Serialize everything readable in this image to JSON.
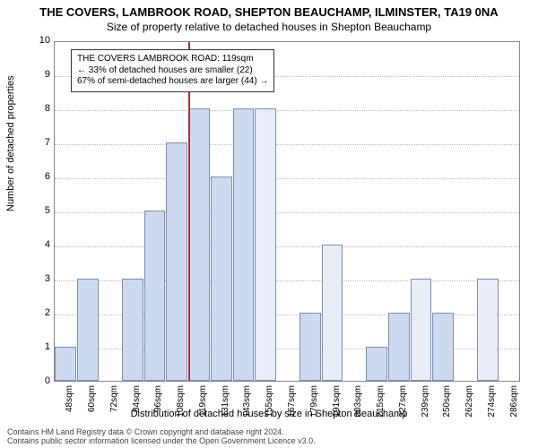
{
  "title": "THE COVERS, LAMBROOK ROAD, SHEPTON BEAUCHAMP, ILMINSTER, TA19 0NA",
  "subtitle": "Size of property relative to detached houses in Shepton Beauchamp",
  "ylabel": "Number of detached properties",
  "xlabel": "Distribution of detached houses by size in Shepton Beauchamp",
  "footer_line1": "Contains HM Land Registry data © Crown copyright and database right 2024.",
  "footer_line2": "Contains public sector information licensed under the Open Government Licence v3.0.",
  "chart": {
    "type": "histogram",
    "ylim": [
      0,
      10
    ],
    "ytick_step": 1,
    "background_color": "#ffffff",
    "grid_color": "#bbbbbb",
    "bar_fill": "#cdd9ef",
    "bar_fill_alt": "#e8edf8",
    "bar_border": "#7a8fb8",
    "marker_color": "#b03030",
    "marker_value": 119,
    "categories": [
      "48sqm",
      "60sqm",
      "72sqm",
      "84sqm",
      "96sqm",
      "108sqm",
      "119sqm",
      "131sqm",
      "143sqm",
      "155sqm",
      "167sqm",
      "179sqm",
      "191sqm",
      "203sqm",
      "215sqm",
      "227sqm",
      "239sqm",
      "250sqm",
      "262sqm",
      "274sqm",
      "286sqm"
    ],
    "values": [
      1,
      3,
      0,
      3,
      5,
      7,
      8,
      6,
      8,
      8,
      0,
      2,
      4,
      0,
      1,
      2,
      3,
      2,
      0,
      3,
      0
    ],
    "alt_shade": [
      0,
      0,
      0,
      0,
      0,
      0,
      0,
      0,
      0,
      1,
      0,
      0,
      1,
      0,
      0,
      0,
      1,
      0,
      0,
      1,
      0
    ],
    "annot": {
      "line1": "THE COVERS LAMBROOK ROAD: 119sqm",
      "line2": "← 33% of detached houses are smaller (22)",
      "line3": "67% of semi-detached houses are larger (44) →"
    },
    "label_fontsize": 11,
    "tick_fontsize": 10
  }
}
